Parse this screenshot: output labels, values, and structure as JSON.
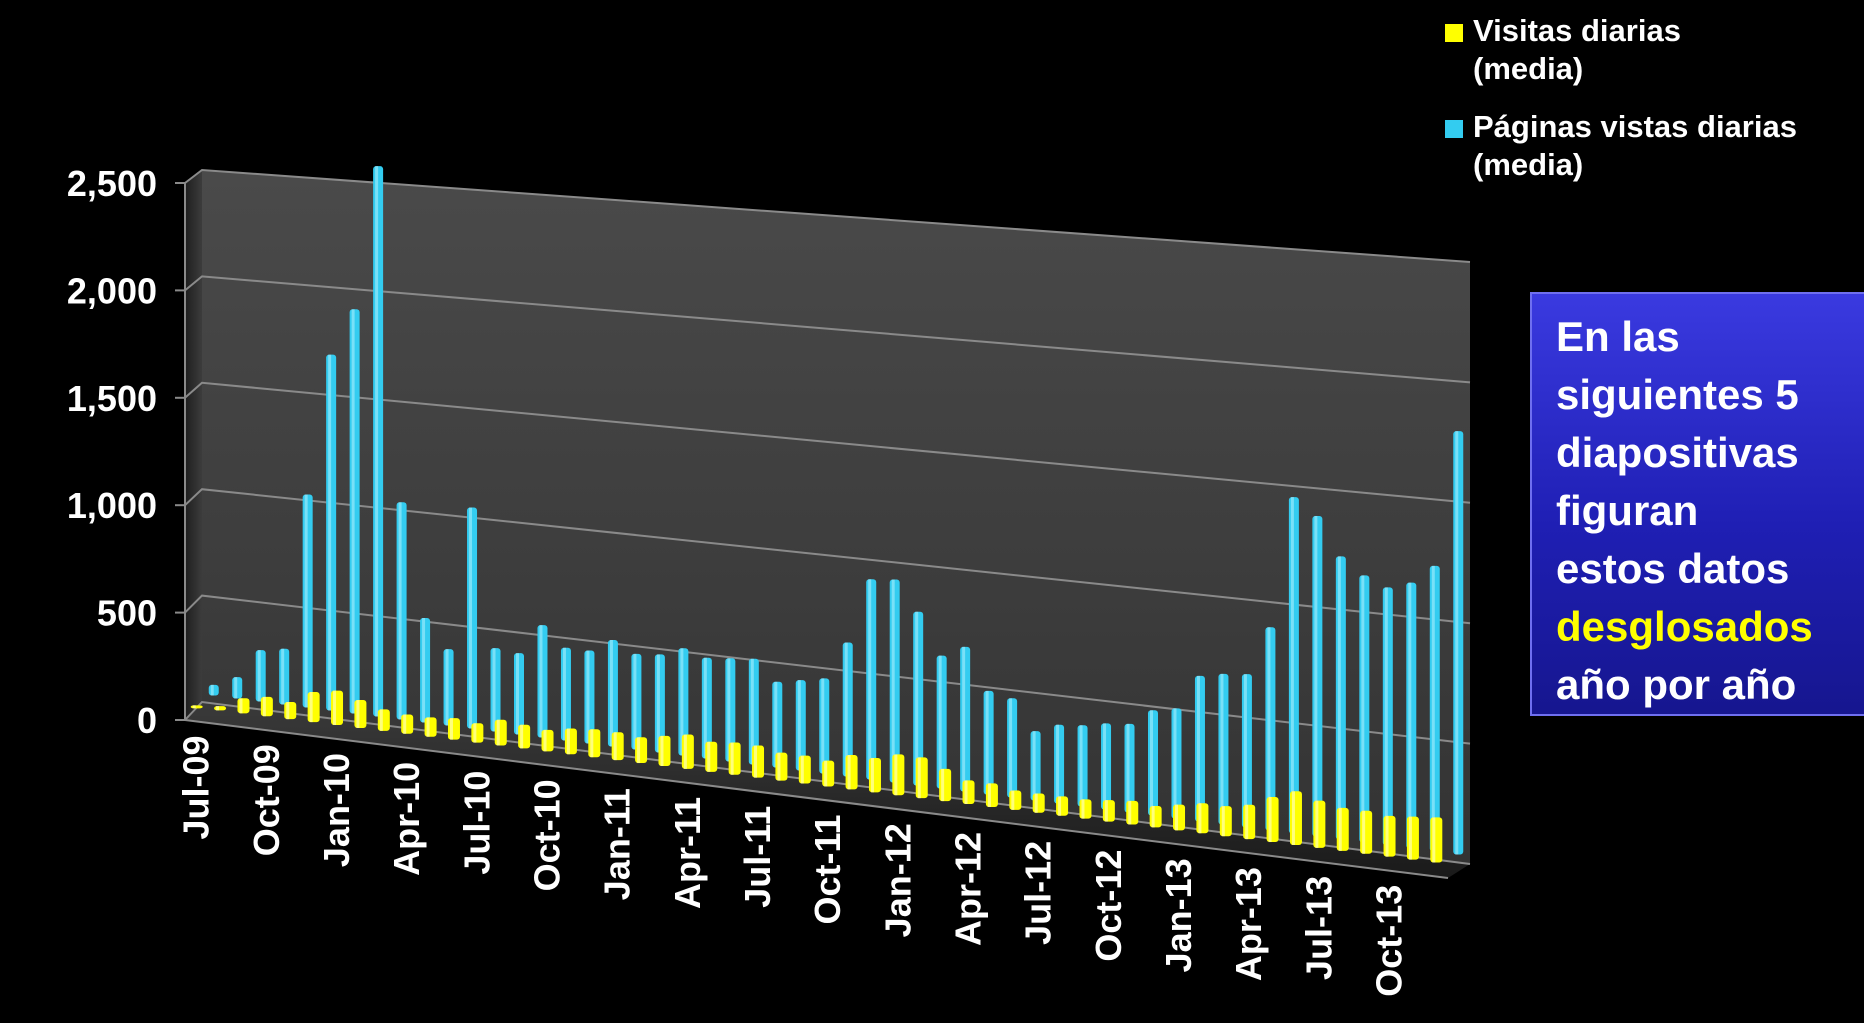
{
  "chart_data": {
    "type": "bar",
    "title": "",
    "xlabel": "",
    "ylabel": "",
    "ylim": [
      0,
      2500
    ],
    "yticks": [
      "0",
      "500",
      "1,000",
      "1,500",
      "2,000",
      "2,500"
    ],
    "ytick_values": [
      0,
      500,
      1000,
      1500,
      2000,
      2500
    ],
    "grid": true,
    "legend_position": "top-right",
    "categories": [
      "Jul-09",
      "Aug-09",
      "Sep-09",
      "Oct-09",
      "Nov-09",
      "Dec-09",
      "Jan-10",
      "Feb-10",
      "Mar-10",
      "Apr-10",
      "May-10",
      "Jun-10",
      "Jul-10",
      "Aug-10",
      "Sep-10",
      "Oct-10",
      "Nov-10",
      "Dec-10",
      "Jan-11",
      "Feb-11",
      "Mar-11",
      "Apr-11",
      "May-11",
      "Jun-11",
      "Jul-11",
      "Aug-11",
      "Sep-11",
      "Oct-11",
      "Nov-11",
      "Dec-11",
      "Jan-12",
      "Feb-12",
      "Mar-12",
      "Apr-12",
      "May-12",
      "Jun-12",
      "Jul-12",
      "Aug-12",
      "Sep-12",
      "Oct-12",
      "Nov-12",
      "Dec-12",
      "Jan-13",
      "Feb-13",
      "Mar-13",
      "Apr-13",
      "May-13",
      "Jun-13",
      "Jul-13",
      "Aug-13",
      "Sep-13",
      "Oct-13",
      "Nov-13",
      "Dec-13"
    ],
    "xtick_labels": [
      "Jul-09",
      "Oct-09",
      "Jan-10",
      "Apr-10",
      "Jul-10",
      "Oct-10",
      "Jan-11",
      "Apr-11",
      "Jul-11",
      "Oct-11",
      "Jan-12",
      "Apr-12",
      "Jul-12",
      "Oct-12",
      "Jan-13",
      "Apr-13",
      "Jul-13",
      "Oct-13"
    ],
    "series": [
      {
        "name": "Visitas diarias (media)",
        "color": "#ffff00",
        "values": [
          10,
          20,
          70,
          90,
          80,
          140,
          160,
          130,
          100,
          90,
          90,
          100,
          90,
          120,
          110,
          100,
          120,
          130,
          130,
          120,
          140,
          160,
          140,
          150,
          150,
          130,
          130,
          120,
          160,
          160,
          190,
          190,
          150,
          110,
          110,
          90,
          90,
          90,
          90,
          100,
          110,
          100,
          120,
          140,
          140,
          160,
          210,
          250,
          220,
          200,
          200,
          190,
          200,
          210
        ]
      },
      {
        "name": "Páginas vistas diarias (media)",
        "color": "#33ccf0",
        "values": [
          50,
          100,
          240,
          260,
          990,
          1650,
          1870,
          2540,
          1000,
          480,
          350,
          1010,
          380,
          370,
          510,
          420,
          420,
          480,
          430,
          440,
          480,
          450,
          460,
          470,
          380,
          400,
          420,
          590,
          880,
          890,
          760,
          580,
          630,
          450,
          430,
          300,
          340,
          350,
          370,
          380,
          450,
          470,
          620,
          640,
          650,
          860,
          1420,
          1350,
          1190,
          1120,
          1080,
          1110,
          1190,
          1760
        ]
      }
    ]
  },
  "legend": {
    "items": [
      {
        "line1": "Visitas diarias",
        "line2": "(media)",
        "color": "#ffff00"
      },
      {
        "line1": "Páginas vistas diarias",
        "line2": "(media)",
        "color": "#33ccf0"
      }
    ]
  },
  "callout": {
    "lines": [
      "En las",
      "siguientes 5",
      "diapositivas",
      "figuran",
      "estos datos"
    ],
    "highlight": "desglosados",
    "last": "año por año",
    "highlight_color": "#ffff00"
  }
}
